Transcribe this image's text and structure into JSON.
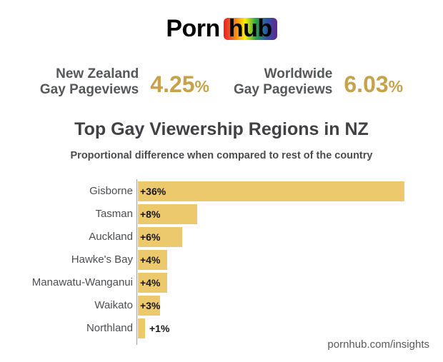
{
  "logo": {
    "text_left": "Porn",
    "text_right": "hub"
  },
  "stats": [
    {
      "label_line1": "New Zealand",
      "label_line2": "Gay Pageviews",
      "value": "4.25%"
    },
    {
      "label_line1": "Worldwide",
      "label_line2": "Gay Pageviews",
      "value": "6.03%"
    }
  ],
  "chart_data": {
    "type": "bar",
    "orientation": "horizontal",
    "title": "Top Gay Viewership Regions in NZ",
    "subtitle": "Proportional difference when compared to rest of the country",
    "categories": [
      "Gisborne",
      "Tasman",
      "Auckland",
      "Hawke's Bay",
      "Manawatu-Wanganui",
      "Waikato",
      "Northland"
    ],
    "values": [
      36,
      8,
      6,
      4,
      4,
      3,
      1
    ],
    "value_labels": [
      "+36%",
      "+8%",
      "+6%",
      "+4%",
      "+4%",
      "+3%",
      "+1%"
    ],
    "xlim": [
      0,
      36
    ],
    "grid": false,
    "legend": false,
    "bar_color": "#edc96d"
  },
  "footer": {
    "text": "pornhub.com/insights"
  },
  "colors": {
    "accent_gold": "#c7a24a",
    "bar_gold": "#edc96d",
    "logo_rainbow": [
      "#ee1c25",
      "#f47a20",
      "#fdf000",
      "#29a64b",
      "#2a56a5",
      "#63268f"
    ]
  }
}
